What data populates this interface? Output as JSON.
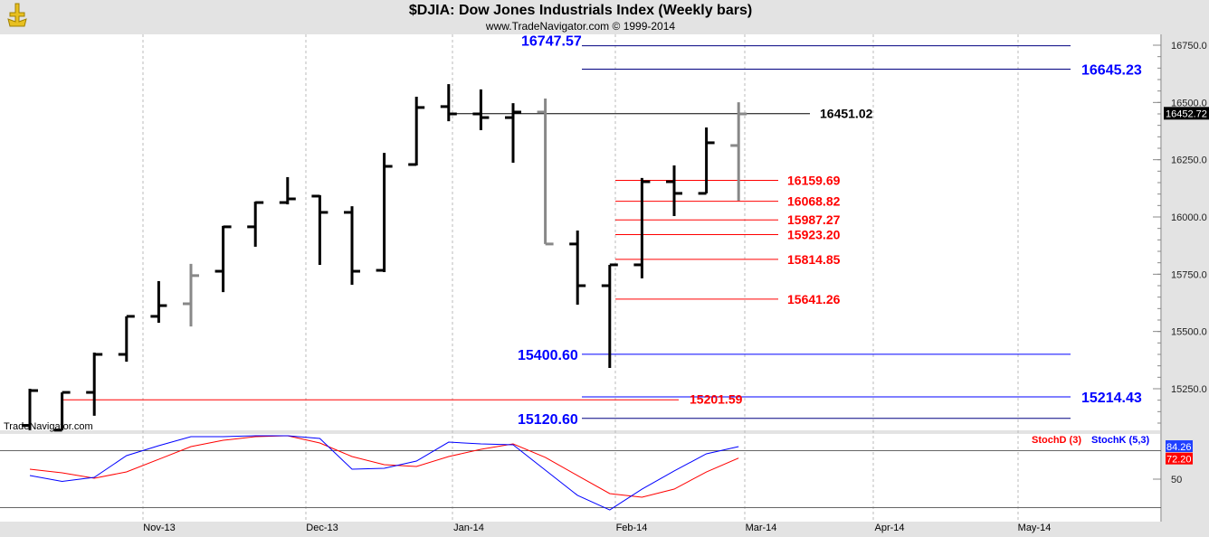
{
  "header": {
    "title": "$DJIA:  Dow Jones Industrials Index  (Weekly bars)",
    "subtitle": "www.TradeNavigator.com © 1999-2014",
    "watermark": "TradeNavigator.com"
  },
  "chart_data": {
    "type": "ohlc",
    "title": "$DJIA:  Dow Jones Industrials Index  (Weekly bars)",
    "ylim": [
      15068,
      16800
    ],
    "y_ticks": [
      "16750.0",
      "16500.0",
      "16250.0",
      "16000.0",
      "15750.0",
      "15500.0",
      "15250.0"
    ],
    "y_tick_values": [
      16750,
      16500,
      16250,
      16000,
      15750,
      15500,
      15250
    ],
    "x_ticks": [
      "Nov-13",
      "Dec-13",
      "Jan-14",
      "Feb-14",
      "Mar-14",
      "Apr-14",
      "May-14"
    ],
    "last_price": "16452.72",
    "bars": [
      {
        "o": 15090,
        "h": 15250,
        "l": 15069,
        "c": 15242,
        "gray": false
      },
      {
        "o": 15069,
        "h": 15234,
        "l": 15069,
        "c": 15234,
        "gray": false
      },
      {
        "o": 15234,
        "h": 15408,
        "l": 15132,
        "c": 15400,
        "gray": false
      },
      {
        "o": 15400,
        "h": 15566,
        "l": 15368,
        "c": 15566,
        "gray": false
      },
      {
        "o": 15566,
        "h": 15720,
        "l": 15538,
        "c": 15613,
        "gray": false
      },
      {
        "o": 15621,
        "h": 15795,
        "l": 15522,
        "c": 15744,
        "gray": true
      },
      {
        "o": 15763,
        "h": 15961,
        "l": 15672,
        "c": 15957,
        "gray": false
      },
      {
        "o": 15957,
        "h": 16067,
        "l": 15870,
        "c": 16063,
        "gray": false
      },
      {
        "o": 16063,
        "h": 16174,
        "l": 16055,
        "c": 16079,
        "gray": false
      },
      {
        "o": 16091,
        "h": 16095,
        "l": 15791,
        "c": 16020,
        "gray": false
      },
      {
        "o": 16020,
        "h": 16047,
        "l": 15704,
        "c": 15763,
        "gray": false
      },
      {
        "o": 15767,
        "h": 16280,
        "l": 15759,
        "c": 16221,
        "gray": false
      },
      {
        "o": 16229,
        "h": 16525,
        "l": 16225,
        "c": 16478,
        "gray": false
      },
      {
        "o": 16482,
        "h": 16580,
        "l": 16418,
        "c": 16450,
        "gray": false
      },
      {
        "o": 16450,
        "h": 16557,
        "l": 16379,
        "c": 16434,
        "gray": false
      },
      {
        "o": 16434,
        "h": 16497,
        "l": 16237,
        "c": 16458,
        "gray": false
      },
      {
        "o": 16458,
        "h": 16517,
        "l": 15882,
        "c": 15882,
        "gray": true
      },
      {
        "o": 15882,
        "h": 15941,
        "l": 15617,
        "c": 15700,
        "gray": false
      },
      {
        "o": 15700,
        "h": 15791,
        "l": 15341,
        "c": 15791,
        "gray": false
      },
      {
        "o": 15791,
        "h": 16170,
        "l": 15732,
        "c": 16154,
        "gray": false
      },
      {
        "o": 16154,
        "h": 16225,
        "l": 16004,
        "c": 16103,
        "gray": false
      },
      {
        "o": 16103,
        "h": 16391,
        "l": 16103,
        "c": 16324,
        "gray": false
      },
      {
        "o": 16312,
        "h": 16501,
        "l": 16071,
        "c": 16450,
        "gray": true
      }
    ],
    "levels": [
      {
        "label": "16747.57",
        "value": 16747.57,
        "color": "#0000ff"
      },
      {
        "label": "16645.23",
        "value": 16645.23,
        "color": "#0000ff"
      },
      {
        "label": "16451.02",
        "value": 16451.02,
        "color": "#000000"
      },
      {
        "label": "16159.69",
        "value": 16159.69,
        "color": "#ff0000"
      },
      {
        "label": "16068.82",
        "value": 16068.82,
        "color": "#ff0000"
      },
      {
        "label": "15987.27",
        "value": 15987.27,
        "color": "#ff0000"
      },
      {
        "label": "15923.20",
        "value": 15923.2,
        "color": "#ff0000"
      },
      {
        "label": "15814.85",
        "value": 15814.85,
        "color": "#ff0000"
      },
      {
        "label": "15641.26",
        "value": 15641.26,
        "color": "#ff0000"
      },
      {
        "label": "15400.60",
        "value": 15400.6,
        "color": "#0000ff"
      },
      {
        "label": "15214.43",
        "value": 15214.43,
        "color": "#0000ff"
      },
      {
        "label": "15201.59",
        "value": 15201.59,
        "color": "#ff0000"
      },
      {
        "label": "15120.60",
        "value": 15120.6,
        "color": "#0000ff"
      }
    ],
    "stochastic": {
      "ylim": [
        0,
        100
      ],
      "y_tick": "50",
      "legend": [
        {
          "name": "StochD (3)",
          "color": "#ff0000"
        },
        {
          "name": "StochK (5,3)",
          "color": "#0000ff"
        }
      ],
      "k_last": "84.26",
      "d_last": "72.20",
      "k": [
        53.8,
        47.6,
        51.9,
        74.8,
        85.2,
        94.8,
        94.8,
        95.7,
        95.7,
        92.9,
        60.5,
        61.4,
        69.0,
        89.0,
        87.1,
        86.2,
        59.5,
        32.9,
        17.6,
        39.5,
        58.6,
        76.7,
        84.3
      ],
      "d": [
        60.5,
        56.7,
        51.0,
        57.6,
        70.9,
        84.3,
        90.9,
        94.8,
        95.7,
        88.1,
        73.8,
        65.2,
        63.3,
        73.8,
        81.4,
        87.1,
        72.9,
        53.8,
        34.8,
        31.0,
        39.5,
        57.6,
        72.2
      ]
    }
  }
}
